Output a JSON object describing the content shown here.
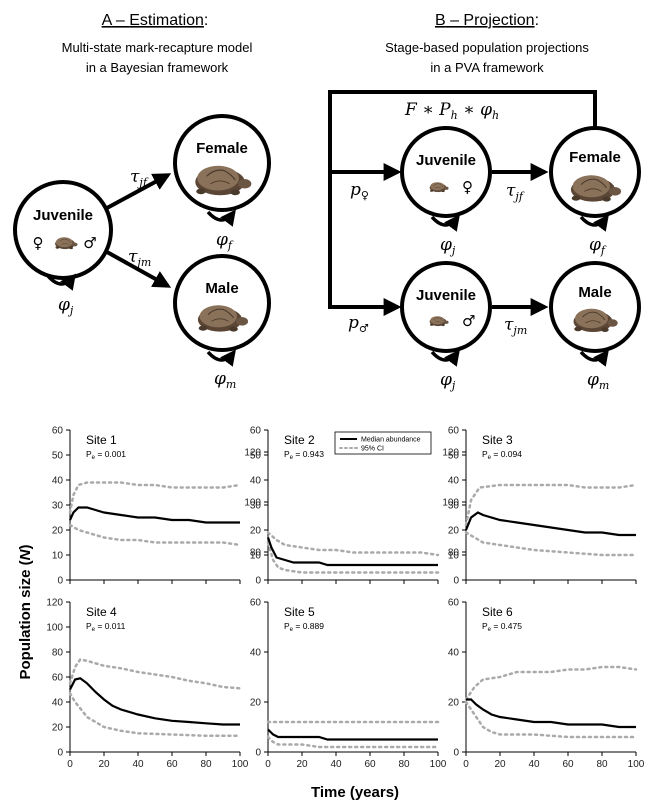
{
  "panelA": {
    "letter": "A",
    "title": "Estimation",
    "line1": "Multi-state mark-recapture model",
    "line2": "in a Bayesian framework",
    "juvenile": "Juvenile",
    "female": "Female",
    "male": "Male",
    "female_sym": "♀",
    "male_sym": "♂",
    "tau_jf": "τ",
    "tau_jf_sub": "jf",
    "tau_jm": "τ",
    "tau_jm_sub": "jm",
    "phi_j": "φ",
    "phi_j_sub": "j",
    "phi_f": "φ",
    "phi_f_sub": "f",
    "phi_m": "φ",
    "phi_m_sub": "m"
  },
  "panelB": {
    "letter": "B",
    "title": "Projection",
    "line1": "Stage-based population projections",
    "line2": "in a PVA framework",
    "juvenile": "Juvenile",
    "female": "Female",
    "male": "Male",
    "female_sym": "♀",
    "male_sym": "♂",
    "fecundity": "F ∗ P",
    "fecundity_sub": "h",
    "fecundity_tail": " ∗ φ",
    "fecundity_tail_sub": "h",
    "p_f": "p",
    "p_f_sub": "♀",
    "p_m": "p",
    "p_m_sub": "♂",
    "tau_jf": "τ",
    "tau_jf_sub": "jf",
    "tau_jm": "τ",
    "tau_jm_sub": "jm",
    "phi_j": "φ",
    "phi_j_sub": "j",
    "phi_f": "φ",
    "phi_f_sub": "f",
    "phi_m": "φ",
    "phi_m_sub": "m"
  },
  "colors": {
    "median": "#000000",
    "ci": "#aaaaaa",
    "turtle_dark": "#5b4636",
    "turtle_mid": "#8a7159"
  },
  "chart_data": {
    "type": "line",
    "xlabel": "Time (years)",
    "ylabel_main": "Population size (",
    "ylabel_var": "N",
    "ylabel_end": ")",
    "legend": {
      "median": "Median abundance",
      "ci": "95% CI"
    },
    "xticks": [
      0,
      20,
      40,
      60,
      80,
      100
    ],
    "yticks": [
      0,
      10,
      20,
      30,
      40,
      50,
      60
    ],
    "xlim": [
      0,
      100
    ],
    "ylim": [
      0,
      60
    ],
    "top_row_yticks": [
      0,
      10,
      20,
      30,
      40,
      50,
      60
    ],
    "bottom_row_yticks": [
      0,
      20,
      40,
      60,
      80,
      100,
      120
    ],
    "panels": [
      {
        "site": "Site 1",
        "pe_label": "P",
        "pe_sub": "e",
        "pe_value": " = 0.001",
        "ylim": [
          0,
          60
        ],
        "median": [
          [
            0,
            24
          ],
          [
            2,
            27
          ],
          [
            5,
            29
          ],
          [
            10,
            29
          ],
          [
            15,
            28
          ],
          [
            20,
            27
          ],
          [
            30,
            26
          ],
          [
            40,
            25
          ],
          [
            50,
            25
          ],
          [
            60,
            24
          ],
          [
            70,
            24
          ],
          [
            80,
            23
          ],
          [
            90,
            23
          ],
          [
            100,
            23
          ]
        ],
        "upper": [
          [
            0,
            27
          ],
          [
            2,
            34
          ],
          [
            5,
            38
          ],
          [
            10,
            39
          ],
          [
            20,
            39
          ],
          [
            30,
            39
          ],
          [
            40,
            38
          ],
          [
            50,
            38
          ],
          [
            60,
            37
          ],
          [
            70,
            37
          ],
          [
            80,
            37
          ],
          [
            90,
            37
          ],
          [
            100,
            38
          ]
        ],
        "lower": [
          [
            0,
            22
          ],
          [
            5,
            20
          ],
          [
            10,
            19
          ],
          [
            20,
            17
          ],
          [
            30,
            16
          ],
          [
            40,
            16
          ],
          [
            50,
            15
          ],
          [
            60,
            15
          ],
          [
            70,
            15
          ],
          [
            80,
            15
          ],
          [
            90,
            15
          ],
          [
            100,
            14
          ]
        ]
      },
      {
        "site": "Site 2",
        "pe_label": "P",
        "pe_sub": "e",
        "pe_value": " = 0.943",
        "ylim": [
          0,
          60
        ],
        "median": [
          [
            0,
            17
          ],
          [
            2,
            13
          ],
          [
            5,
            9
          ],
          [
            10,
            8
          ],
          [
            15,
            7
          ],
          [
            20,
            7
          ],
          [
            30,
            7
          ],
          [
            35,
            6
          ],
          [
            40,
            6
          ],
          [
            50,
            6
          ],
          [
            60,
            6
          ],
          [
            70,
            6
          ],
          [
            80,
            6
          ],
          [
            90,
            6
          ],
          [
            100,
            6
          ]
        ],
        "upper": [
          [
            0,
            19
          ],
          [
            5,
            16
          ],
          [
            10,
            14
          ],
          [
            20,
            13
          ],
          [
            30,
            12
          ],
          [
            40,
            12
          ],
          [
            50,
            11
          ],
          [
            60,
            11
          ],
          [
            70,
            11
          ],
          [
            80,
            11
          ],
          [
            90,
            11
          ],
          [
            100,
            10
          ]
        ],
        "lower": [
          [
            0,
            15
          ],
          [
            3,
            8
          ],
          [
            6,
            5
          ],
          [
            10,
            4
          ],
          [
            20,
            3
          ],
          [
            40,
            3
          ],
          [
            60,
            3
          ],
          [
            80,
            3
          ],
          [
            100,
            3
          ]
        ]
      },
      {
        "site": "Site 3",
        "pe_label": "P",
        "pe_sub": "e",
        "pe_value": " = 0.094",
        "ylim": [
          0,
          60
        ],
        "median": [
          [
            0,
            20
          ],
          [
            3,
            25
          ],
          [
            7,
            27
          ],
          [
            10,
            26
          ],
          [
            20,
            24
          ],
          [
            30,
            23
          ],
          [
            40,
            22
          ],
          [
            50,
            21
          ],
          [
            60,
            20
          ],
          [
            70,
            19
          ],
          [
            80,
            19
          ],
          [
            90,
            18
          ],
          [
            100,
            18
          ]
        ],
        "upper": [
          [
            0,
            22
          ],
          [
            3,
            32
          ],
          [
            8,
            37
          ],
          [
            20,
            38
          ],
          [
            30,
            38
          ],
          [
            40,
            38
          ],
          [
            50,
            38
          ],
          [
            60,
            38
          ],
          [
            70,
            37
          ],
          [
            80,
            37
          ],
          [
            90,
            37
          ],
          [
            100,
            38
          ]
        ],
        "lower": [
          [
            0,
            19
          ],
          [
            5,
            17
          ],
          [
            10,
            15
          ],
          [
            20,
            14
          ],
          [
            30,
            13
          ],
          [
            40,
            12
          ],
          [
            60,
            11
          ],
          [
            80,
            10
          ],
          [
            100,
            10
          ]
        ]
      },
      {
        "site": "Site 4",
        "pe_label": "P",
        "pe_sub": "e",
        "pe_value": " = 0.011",
        "ylim": [
          0,
          120
        ],
        "median": [
          [
            0,
            50
          ],
          [
            3,
            58
          ],
          [
            6,
            59
          ],
          [
            10,
            55
          ],
          [
            15,
            48
          ],
          [
            20,
            42
          ],
          [
            25,
            37
          ],
          [
            30,
            34
          ],
          [
            40,
            30
          ],
          [
            50,
            27
          ],
          [
            60,
            25
          ],
          [
            70,
            24
          ],
          [
            80,
            23
          ],
          [
            90,
            22
          ],
          [
            100,
            22
          ]
        ],
        "upper": [
          [
            0,
            55
          ],
          [
            3,
            68
          ],
          [
            6,
            74
          ],
          [
            10,
            73
          ],
          [
            20,
            69
          ],
          [
            30,
            67
          ],
          [
            40,
            64
          ],
          [
            50,
            62
          ],
          [
            60,
            60
          ],
          [
            70,
            57
          ],
          [
            80,
            55
          ],
          [
            90,
            52
          ],
          [
            100,
            51
          ]
        ],
        "lower": [
          [
            0,
            47
          ],
          [
            3,
            40
          ],
          [
            6,
            35
          ],
          [
            10,
            28
          ],
          [
            20,
            20
          ],
          [
            30,
            17
          ],
          [
            40,
            15
          ],
          [
            60,
            14
          ],
          [
            80,
            13
          ],
          [
            100,
            13
          ]
        ]
      },
      {
        "site": "Site 5",
        "pe_label": "P",
        "pe_sub": "e",
        "pe_value": " = 0.889",
        "ylim": [
          0,
          60
        ],
        "median": [
          [
            0,
            9
          ],
          [
            3,
            7
          ],
          [
            6,
            6
          ],
          [
            10,
            6
          ],
          [
            20,
            6
          ],
          [
            30,
            6
          ],
          [
            35,
            5
          ],
          [
            40,
            5
          ],
          [
            60,
            5
          ],
          [
            80,
            5
          ],
          [
            100,
            5
          ]
        ],
        "upper": [
          [
            0,
            12
          ],
          [
            20,
            12
          ],
          [
            40,
            12
          ],
          [
            60,
            12
          ],
          [
            80,
            12
          ],
          [
            100,
            12
          ]
        ],
        "lower": [
          [
            0,
            6
          ],
          [
            3,
            4
          ],
          [
            6,
            3
          ],
          [
            10,
            3
          ],
          [
            20,
            3
          ],
          [
            30,
            2
          ],
          [
            50,
            2
          ],
          [
            70,
            2
          ],
          [
            100,
            2
          ]
        ]
      },
      {
        "site": "Site 6",
        "pe_label": "P",
        "pe_sub": "e",
        "pe_value": " = 0.475",
        "ylim": [
          0,
          60
        ],
        "median": [
          [
            0,
            21
          ],
          [
            3,
            21
          ],
          [
            6,
            19
          ],
          [
            10,
            17
          ],
          [
            15,
            15
          ],
          [
            20,
            14
          ],
          [
            30,
            13
          ],
          [
            40,
            12
          ],
          [
            50,
            12
          ],
          [
            60,
            11
          ],
          [
            70,
            11
          ],
          [
            80,
            11
          ],
          [
            90,
            10
          ],
          [
            100,
            10
          ]
        ],
        "upper": [
          [
            0,
            21
          ],
          [
            5,
            26
          ],
          [
            10,
            29
          ],
          [
            20,
            30
          ],
          [
            30,
            32
          ],
          [
            40,
            32
          ],
          [
            50,
            32
          ],
          [
            60,
            33
          ],
          [
            70,
            33
          ],
          [
            80,
            34
          ],
          [
            90,
            34
          ],
          [
            100,
            33
          ]
        ],
        "lower": [
          [
            0,
            20
          ],
          [
            5,
            15
          ],
          [
            10,
            10
          ],
          [
            15,
            8
          ],
          [
            20,
            7
          ],
          [
            40,
            7
          ],
          [
            60,
            6
          ],
          [
            80,
            6
          ],
          [
            100,
            6
          ]
        ]
      }
    ]
  }
}
